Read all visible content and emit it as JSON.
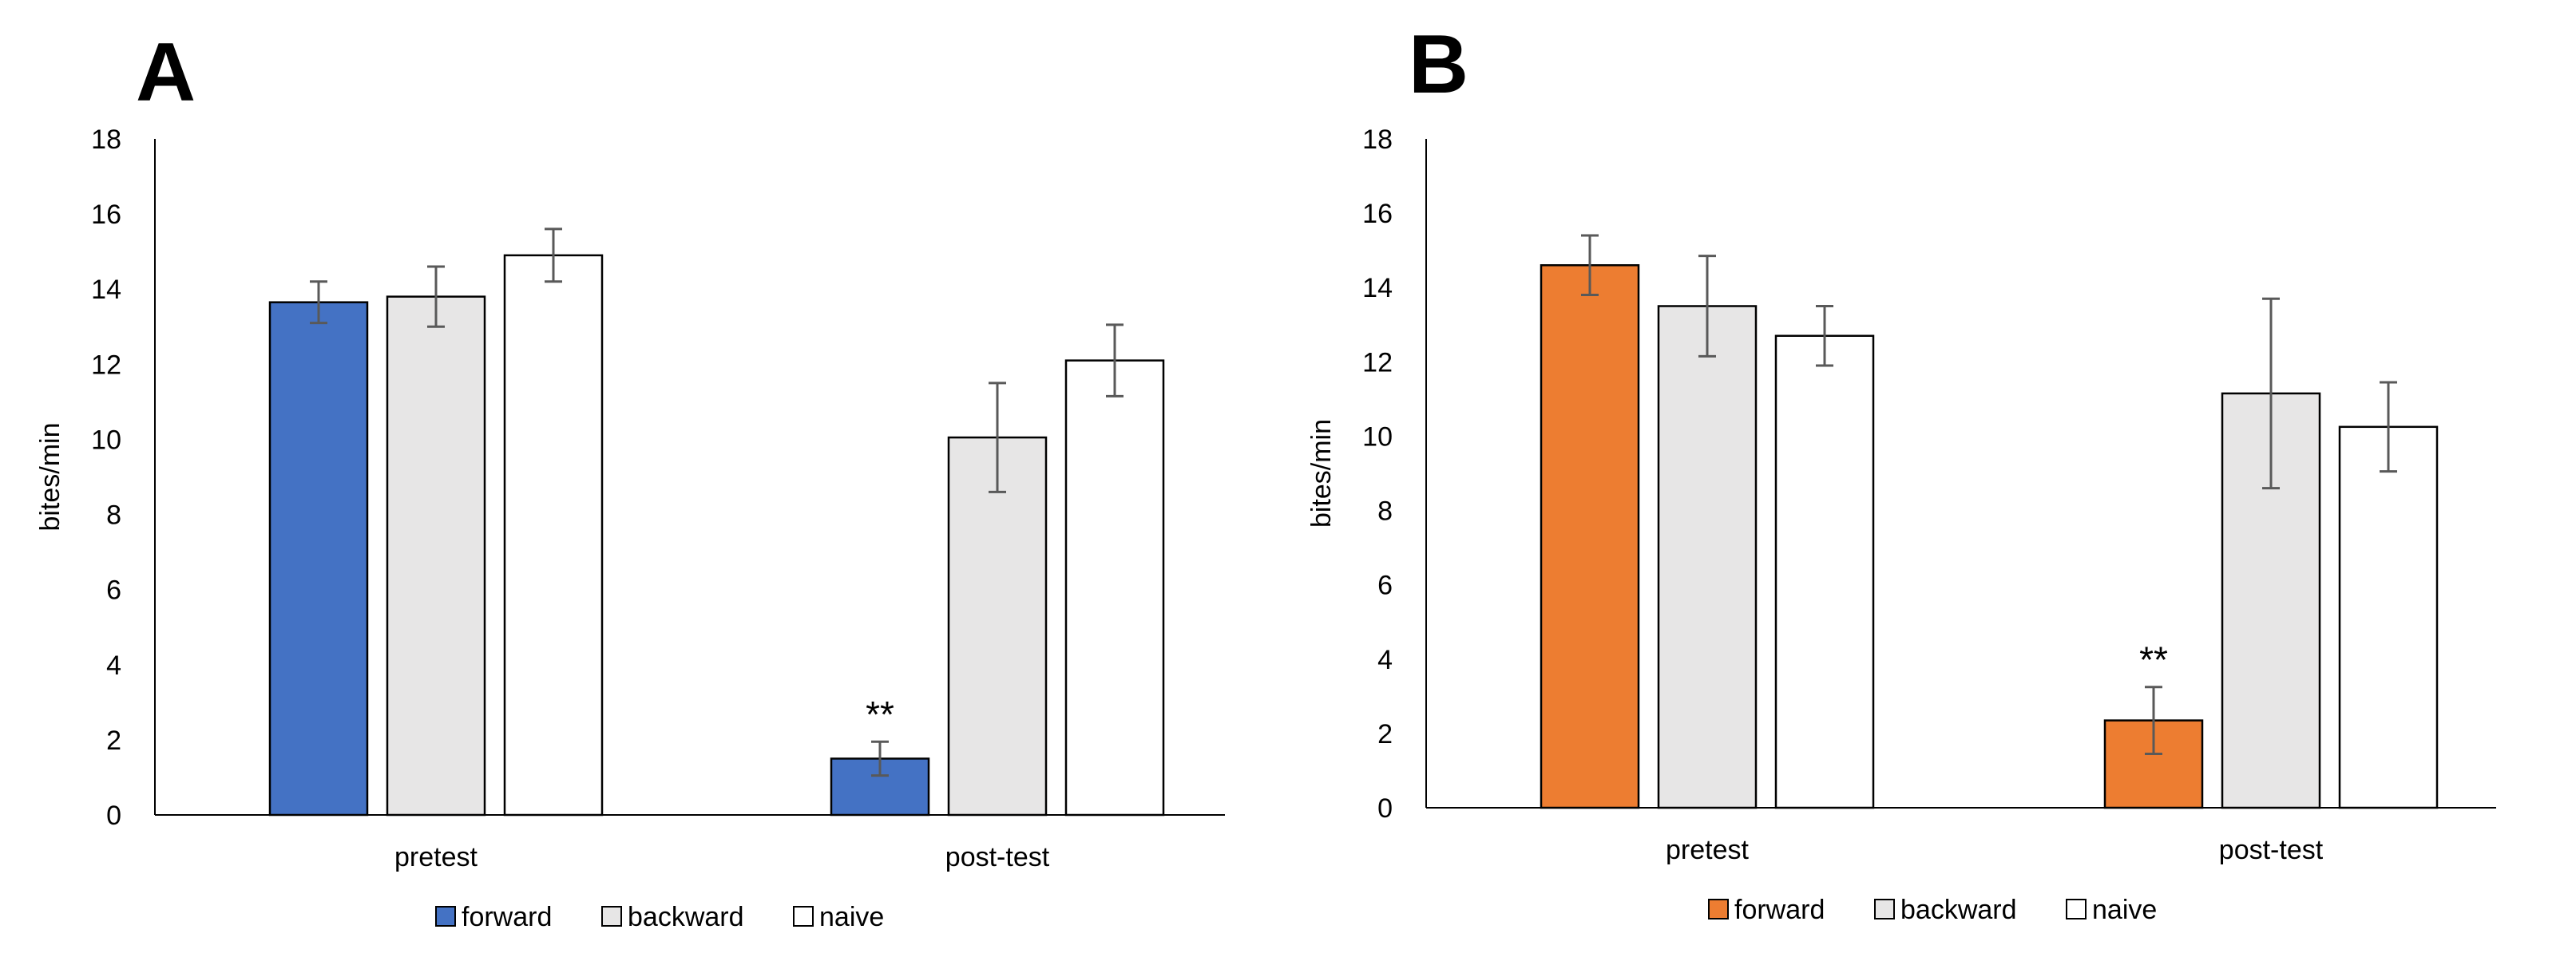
{
  "chart_data": [
    {
      "panel": "A",
      "type": "bar",
      "categories": [
        "pretest",
        "post-test"
      ],
      "ylabel": "bites/min",
      "ylim": [
        0,
        18
      ],
      "yticks": [
        "0",
        "2",
        "4",
        "6",
        "8",
        "10",
        "12",
        "14",
        "16",
        "18"
      ],
      "grid": false,
      "legend_position": "bottom",
      "series": [
        {
          "name": "forward",
          "color": "#4472C4",
          "values": [
            13.65,
            1.5
          ],
          "errors": [
            0.55,
            0.45
          ]
        },
        {
          "name": "backward",
          "color": "#E7E6E6",
          "values": [
            13.8,
            10.05
          ],
          "errors": [
            0.8,
            1.45
          ]
        },
        {
          "name": "naive",
          "color": "#FFFFFF",
          "values": [
            14.9,
            12.1
          ],
          "errors": [
            0.7,
            0.95
          ]
        }
      ],
      "annotations": [
        {
          "text": "**",
          "category": "post-test",
          "series": "forward"
        }
      ]
    },
    {
      "panel": "B",
      "type": "bar",
      "categories": [
        "pretest",
        "post-test"
      ],
      "ylabel": "bites/min",
      "ylim": [
        0,
        18
      ],
      "yticks": [
        "0",
        "2",
        "4",
        "6",
        "8",
        "10",
        "12",
        "14",
        "16",
        "18"
      ],
      "grid": false,
      "legend_position": "bottom",
      "series": [
        {
          "name": "forward",
          "color": "#ED7D31",
          "values": [
            14.6,
            2.35
          ],
          "errors": [
            0.8,
            0.9
          ]
        },
        {
          "name": "backward",
          "color": "#E7E6E6",
          "values": [
            13.5,
            11.15
          ],
          "errors": [
            1.35,
            2.55
          ]
        },
        {
          "name": "naive",
          "color": "#FFFFFF",
          "values": [
            12.7,
            10.25
          ],
          "errors": [
            0.8,
            1.2
          ]
        }
      ],
      "annotations": [
        {
          "text": "**",
          "category": "post-test",
          "series": "forward"
        }
      ]
    }
  ]
}
